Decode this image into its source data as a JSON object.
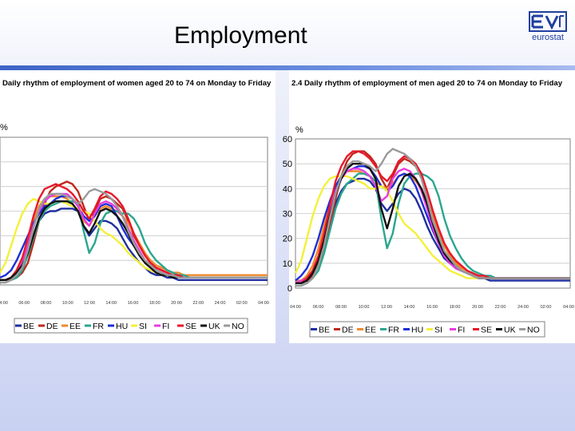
{
  "slide": {
    "title": "Employment",
    "logo_text": "eurostat"
  },
  "chart_data": [
    {
      "type": "line",
      "title": "Daily rhythm of employment of women aged 20 to 74 on Monday to Friday",
      "ylabel": "%",
      "ylim": [
        0,
        60
      ],
      "y_ticks": [],
      "x_ticks": [
        "04:00",
        "06:00",
        "08:00",
        "10:00",
        "12:00",
        "14:00",
        "16:00",
        "18:00",
        "20:00",
        "22:00",
        "24:00",
        "02:00",
        "04:00"
      ],
      "x": [
        0,
        1,
        2,
        3,
        4,
        5,
        6,
        7,
        8,
        9,
        10,
        11,
        12,
        13,
        14,
        15,
        16,
        17,
        18,
        19,
        20,
        21,
        22,
        23,
        24,
        25,
        26,
        27,
        28,
        29,
        30,
        31,
        32,
        33,
        34,
        35,
        36,
        37,
        38,
        39,
        40,
        41,
        42,
        43,
        44,
        45,
        46,
        47,
        48
      ],
      "series": [
        {
          "name": "BE",
          "color": "#1f2f9f",
          "values": [
            2,
            2,
            3,
            5,
            8,
            13,
            20,
            26,
            29,
            30,
            30,
            31,
            31,
            31,
            30,
            24,
            20,
            23,
            26,
            26,
            25,
            23,
            19,
            15,
            12,
            9,
            7,
            5,
            4,
            4,
            3,
            3,
            2,
            2,
            2,
            2,
            2,
            2,
            2,
            2,
            2,
            2,
            2,
            2,
            2,
            2,
            2,
            2,
            2
          ]
        },
        {
          "name": "DE",
          "color": "#c0281d",
          "values": [
            2,
            2,
            2,
            3,
            5,
            9,
            17,
            26,
            33,
            38,
            40,
            41,
            42,
            41,
            38,
            32,
            26,
            30,
            35,
            36,
            35,
            33,
            31,
            26,
            20,
            16,
            12,
            9,
            7,
            6,
            5,
            4,
            4,
            3,
            3,
            3,
            3,
            3,
            3,
            3,
            3,
            3,
            3,
            3,
            3,
            3,
            3,
            3,
            3
          ]
        },
        {
          "name": "EE",
          "color": "#ef8a2b",
          "values": [
            2,
            2,
            3,
            6,
            11,
            18,
            26,
            32,
            35,
            36,
            36,
            36,
            35,
            33,
            30,
            26,
            24,
            28,
            31,
            32,
            31,
            30,
            28,
            25,
            21,
            17,
            13,
            10,
            8,
            7,
            6,
            5,
            5,
            4,
            4,
            4,
            4,
            4,
            4,
            4,
            4,
            4,
            4,
            4,
            4,
            4,
            4,
            4,
            4
          ]
        },
        {
          "name": "FR",
          "color": "#2aa68e",
          "values": [
            1,
            1,
            2,
            3,
            6,
            12,
            19,
            26,
            30,
            32,
            33,
            34,
            34,
            34,
            33,
            22,
            13,
            17,
            25,
            29,
            30,
            30,
            29,
            29,
            27,
            23,
            17,
            13,
            10,
            8,
            6,
            5,
            4,
            4,
            3,
            3,
            3,
            3,
            3,
            3,
            3,
            3,
            3,
            3,
            3,
            3,
            3,
            3,
            3
          ]
        },
        {
          "name": "HU",
          "color": "#1e2fd6",
          "values": [
            3,
            4,
            6,
            10,
            15,
            20,
            25,
            29,
            32,
            33,
            35,
            36,
            36,
            35,
            32,
            28,
            26,
            28,
            32,
            33,
            32,
            28,
            23,
            19,
            16,
            13,
            10,
            8,
            6,
            5,
            4,
            4,
            3,
            3,
            3,
            3,
            3,
            3,
            3,
            3,
            3,
            3,
            3,
            3,
            3,
            3,
            3,
            3,
            3
          ]
        },
        {
          "name": "SI",
          "color": "#f4f03a",
          "values": [
            5,
            9,
            16,
            23,
            29,
            33,
            35,
            34,
            33,
            33,
            34,
            34,
            33,
            32,
            31,
            30,
            29,
            26,
            23,
            21,
            20,
            18,
            16,
            13,
            11,
            9,
            7,
            6,
            5,
            4,
            4,
            3,
            3,
            3,
            3,
            3,
            3,
            3,
            3,
            3,
            3,
            3,
            3,
            3,
            3,
            3,
            3,
            3,
            3
          ]
        },
        {
          "name": "FI",
          "color": "#e83ce0",
          "values": [
            2,
            2,
            3,
            5,
            9,
            16,
            24,
            30,
            34,
            36,
            37,
            37,
            37,
            35,
            32,
            27,
            24,
            29,
            33,
            34,
            33,
            31,
            28,
            23,
            18,
            14,
            10,
            8,
            6,
            5,
            4,
            4,
            3,
            3,
            3,
            3,
            3,
            3,
            3,
            3,
            3,
            3,
            3,
            3,
            3,
            3,
            3,
            3,
            3
          ]
        },
        {
          "name": "SE",
          "color": "#e8182a",
          "values": [
            2,
            2,
            3,
            6,
            11,
            19,
            28,
            35,
            39,
            40,
            41,
            40,
            39,
            37,
            34,
            30,
            27,
            31,
            36,
            38,
            37,
            35,
            32,
            27,
            21,
            16,
            12,
            9,
            7,
            6,
            5,
            4,
            4,
            3,
            3,
            3,
            3,
            3,
            3,
            3,
            3,
            3,
            3,
            3,
            3,
            3,
            3,
            3,
            3
          ]
        },
        {
          "name": "UK",
          "color": "#111111",
          "values": [
            2,
            2,
            3,
            5,
            8,
            13,
            20,
            27,
            31,
            33,
            34,
            34,
            34,
            33,
            30,
            24,
            21,
            25,
            30,
            31,
            30,
            28,
            25,
            21,
            16,
            12,
            9,
            7,
            5,
            4,
            4,
            3,
            3,
            3,
            3,
            3,
            3,
            3,
            3,
            3,
            3,
            3,
            3,
            3,
            3,
            3,
            3,
            3,
            3
          ]
        },
        {
          "name": "NO",
          "color": "#9a9a9a",
          "values": [
            1,
            1,
            2,
            4,
            7,
            14,
            23,
            31,
            35,
            37,
            37,
            37,
            36,
            35,
            33,
            35,
            38,
            39,
            38,
            37,
            35,
            32,
            28,
            22,
            17,
            13,
            10,
            8,
            6,
            5,
            4,
            4,
            3,
            3,
            3,
            3,
            3,
            3,
            3,
            3,
            3,
            3,
            3,
            3,
            3,
            3,
            3,
            3,
            3
          ]
        }
      ]
    },
    {
      "type": "line",
      "title": "2.4 Daily rhythm of employment of men aged 20 to 74 on Monday to Friday",
      "ylabel": "%",
      "ylim": [
        0,
        60
      ],
      "y_ticks": [
        0,
        10,
        20,
        30,
        40,
        50,
        60
      ],
      "x_ticks": [
        "04:00",
        "06:00",
        "08:00",
        "10:00",
        "12:00",
        "14:00",
        "16:00",
        "18:00",
        "20:00",
        "22:00",
        "24:00",
        "02:00",
        "04:00"
      ],
      "x": [
        0,
        1,
        2,
        3,
        4,
        5,
        6,
        7,
        8,
        9,
        10,
        11,
        12,
        13,
        14,
        15,
        16,
        17,
        18,
        19,
        20,
        21,
        22,
        23,
        24,
        25,
        26,
        27,
        28,
        29,
        30,
        31,
        32,
        33,
        34,
        35,
        36,
        37,
        38,
        39,
        40,
        41,
        42,
        43,
        44,
        45,
        46,
        47,
        48
      ],
      "series": [
        {
          "name": "BE",
          "color": "#1f2f9f",
          "values": [
            2,
            2,
            4,
            7,
            11,
            17,
            26,
            34,
            39,
            42,
            43,
            44,
            44,
            43,
            40,
            34,
            31,
            34,
            38,
            40,
            39,
            36,
            31,
            25,
            20,
            16,
            12,
            10,
            8,
            7,
            6,
            5,
            4,
            4,
            3,
            3,
            3,
            3,
            3,
            3,
            3,
            3,
            3,
            3,
            3,
            3,
            3,
            3,
            3
          ]
        },
        {
          "name": "DE",
          "color": "#c0281d",
          "values": [
            2,
            2,
            3,
            5,
            9,
            16,
            26,
            36,
            45,
            51,
            54,
            55,
            55,
            53,
            50,
            44,
            40,
            45,
            50,
            52,
            51,
            49,
            45,
            39,
            31,
            24,
            18,
            14,
            11,
            9,
            7,
            6,
            5,
            5,
            4,
            4,
            4,
            4,
            4,
            4,
            4,
            4,
            4,
            4,
            4,
            4,
            4,
            4,
            4
          ]
        },
        {
          "name": "EE",
          "color": "#ef8a2b",
          "values": [
            3,
            3,
            5,
            9,
            16,
            25,
            34,
            41,
            45,
            47,
            47,
            47,
            46,
            45,
            43,
            41,
            40,
            42,
            45,
            46,
            45,
            43,
            40,
            35,
            29,
            23,
            17,
            13,
            10,
            8,
            7,
            6,
            5,
            5,
            4,
            4,
            4,
            4,
            4,
            4,
            4,
            4,
            4,
            4,
            4,
            4,
            4,
            4,
            4
          ]
        },
        {
          "name": "FR",
          "color": "#2aa68e",
          "values": [
            1,
            1,
            2,
            4,
            7,
            14,
            23,
            32,
            38,
            42,
            44,
            46,
            46,
            45,
            43,
            28,
            16,
            22,
            34,
            42,
            45,
            46,
            46,
            45,
            43,
            37,
            28,
            21,
            16,
            12,
            9,
            7,
            6,
            5,
            5,
            4,
            4,
            4,
            4,
            4,
            4,
            4,
            4,
            4,
            4,
            4,
            4,
            4,
            4
          ]
        },
        {
          "name": "HU",
          "color": "#1e2fd6",
          "values": [
            3,
            5,
            8,
            13,
            20,
            28,
            35,
            41,
            45,
            47,
            48,
            49,
            49,
            48,
            45,
            41,
            39,
            41,
            45,
            46,
            45,
            41,
            35,
            29,
            23,
            18,
            13,
            10,
            8,
            7,
            6,
            5,
            4,
            4,
            4,
            4,
            4,
            4,
            4,
            4,
            4,
            4,
            4,
            4,
            4,
            4,
            4,
            4,
            4
          ]
        },
        {
          "name": "SI",
          "color": "#f4f03a",
          "values": [
            6,
            11,
            20,
            29,
            36,
            41,
            44,
            45,
            45,
            45,
            44,
            43,
            42,
            40,
            40,
            41,
            39,
            35,
            30,
            26,
            24,
            22,
            19,
            16,
            13,
            11,
            9,
            7,
            6,
            5,
            4,
            4,
            4,
            4,
            4,
            4,
            4,
            4,
            4,
            4,
            4,
            4,
            4,
            4,
            4,
            4,
            4,
            4,
            4
          ]
        },
        {
          "name": "FI",
          "color": "#e83ce0",
          "values": [
            2,
            3,
            4,
            7,
            12,
            20,
            30,
            39,
            44,
            47,
            48,
            48,
            47,
            45,
            41,
            35,
            37,
            44,
            47,
            48,
            47,
            44,
            39,
            32,
            24,
            18,
            13,
            10,
            8,
            7,
            6,
            5,
            4,
            4,
            4,
            4,
            4,
            4,
            4,
            4,
            4,
            4,
            4,
            4,
            4,
            4,
            4,
            4,
            4
          ]
        },
        {
          "name": "SE",
          "color": "#e8182a",
          "values": [
            2,
            2,
            4,
            7,
            13,
            22,
            33,
            43,
            49,
            53,
            55,
            55,
            54,
            52,
            49,
            45,
            43,
            46,
            51,
            53,
            52,
            50,
            46,
            39,
            31,
            24,
            18,
            14,
            11,
            9,
            7,
            6,
            5,
            5,
            4,
            4,
            4,
            4,
            4,
            4,
            4,
            4,
            4,
            4,
            4,
            4,
            4,
            4,
            4
          ]
        },
        {
          "name": "UK",
          "color": "#111111",
          "values": [
            2,
            2,
            3,
            6,
            11,
            19,
            29,
            38,
            44,
            48,
            50,
            50,
            50,
            48,
            44,
            32,
            24,
            32,
            41,
            45,
            46,
            44,
            40,
            34,
            26,
            19,
            14,
            11,
            9,
            7,
            6,
            5,
            4,
            4,
            4,
            4,
            4,
            4,
            4,
            4,
            4,
            4,
            4,
            4,
            4,
            4,
            4,
            4,
            4
          ]
        },
        {
          "name": "NO",
          "color": "#9a9a9a",
          "values": [
            1,
            1,
            2,
            4,
            9,
            17,
            28,
            38,
            45,
            49,
            51,
            51,
            50,
            49,
            47,
            50,
            54,
            56,
            55,
            54,
            52,
            49,
            44,
            36,
            27,
            21,
            15,
            12,
            9,
            7,
            6,
            5,
            4,
            4,
            4,
            4,
            4,
            4,
            4,
            4,
            4,
            4,
            4,
            4,
            4,
            4,
            4,
            4,
            4
          ]
        }
      ]
    }
  ]
}
